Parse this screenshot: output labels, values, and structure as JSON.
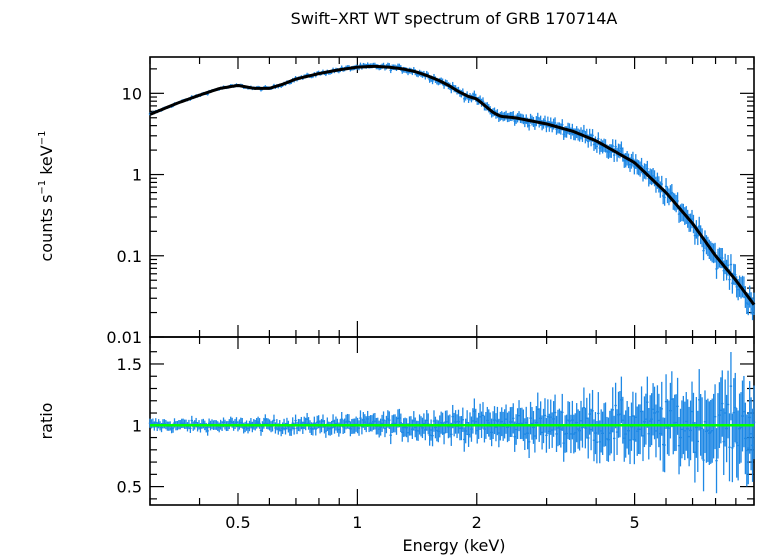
{
  "chart_data": [
    {
      "type": "scatter",
      "panel": "top",
      "title": "Swift–XRT WT spectrum of GRB 170714A",
      "ylabel_main": "counts s",
      "ylabel_exp1": "−1",
      "ylabel_mid": " keV",
      "ylabel_exp2": "−1",
      "yscale": "log",
      "xscale": "log",
      "xlim": [
        0.3,
        10
      ],
      "ylim": [
        0.01,
        28
      ],
      "ytick_labels": [
        "0.01",
        "0.1",
        "1",
        "10"
      ],
      "yticks": [
        0.01,
        0.1,
        1,
        10
      ],
      "data_color": "#1e88e5",
      "model_color": "#000000",
      "model": {
        "x": [
          0.3,
          0.35,
          0.4,
          0.45,
          0.5,
          0.55,
          0.6,
          0.65,
          0.7,
          0.8,
          0.9,
          1.0,
          1.1,
          1.2,
          1.3,
          1.4,
          1.5,
          1.6,
          1.7,
          1.8,
          1.9,
          2.0,
          2.1,
          2.2,
          2.3,
          2.5,
          3.0,
          3.5,
          4.0,
          5.0,
          6.0,
          7.0,
          8.0,
          9.0,
          10.0
        ],
        "y": [
          5.5,
          7.5,
          9.5,
          11.5,
          12.5,
          11.5,
          11.5,
          13.0,
          15.0,
          17.5,
          19.5,
          21.0,
          21.5,
          21.0,
          20.0,
          18.5,
          16.5,
          14.5,
          12.5,
          10.5,
          9.2,
          8.5,
          7.0,
          5.8,
          5.2,
          5.0,
          4.2,
          3.4,
          2.6,
          1.4,
          0.6,
          0.25,
          0.1,
          0.05,
          0.025
        ]
      }
    },
    {
      "type": "scatter",
      "panel": "bottom",
      "ylabel": "ratio",
      "xlabel": "Energy (keV)",
      "xscale": "log",
      "xlim": [
        0.3,
        10
      ],
      "ylim": [
        0.35,
        1.72
      ],
      "xtick_labels": [
        "0.5",
        "1",
        "2",
        "5"
      ],
      "xticks": [
        0.5,
        1,
        2,
        5
      ],
      "ytick_labels": [
        "0.5",
        "1",
        "1.5"
      ],
      "yticks": [
        0.5,
        1,
        1.5
      ],
      "reference_line": 1,
      "reference_color": "#00ff00",
      "data_color": "#1e88e5"
    }
  ]
}
